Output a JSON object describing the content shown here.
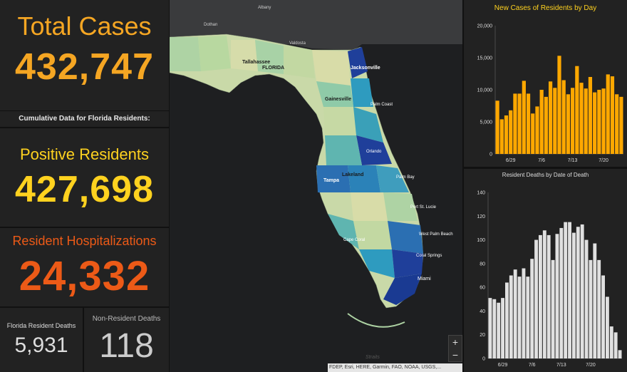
{
  "left_panel": {
    "total_label": "Total Cases",
    "total_value": "432,747",
    "cumulative_label": "Cumulative Data for Florida Residents:",
    "positive_label": "Positive Residents",
    "positive_value": "427,698",
    "hosp_label": "Resident Hospitalizations",
    "hosp_value": "24,332",
    "resident_deaths_label": "Florida Resident Deaths",
    "resident_deaths_value": "5,931",
    "nonresident_deaths_label": "Non-Resident Deaths",
    "nonresident_deaths_value": "118"
  },
  "map": {
    "labels_top": [
      "Albany",
      "Dothan",
      "Valdosta"
    ],
    "labels": [
      "Tallahassee",
      "FLORIDA",
      "Jacksonville",
      "Gainesville",
      "Palm Coast",
      "Orlando",
      "Lakeland",
      "Tampa",
      "Palm Bay",
      "Port St. Lucie",
      "West Palm Beach",
      "Cape Coral",
      "Coral Springs",
      "Miami"
    ],
    "strait_label": "Straits",
    "attribution": "FDEP, Esri, HERE, Garmin, FAO, NOAA, USGS,...",
    "zoom_in": "+",
    "zoom_out": "−",
    "colors": {
      "low": "#d8dca8",
      "mid": "#9fcfa8",
      "high": "#2e9bbf",
      "max": "#1f3f9a"
    }
  },
  "chart_data": [
    {
      "type": "bar",
      "title": "New Cases of Residents by Day",
      "color": "#ffa800",
      "ylim": [
        0,
        20000
      ],
      "yticks": [
        0,
        5000,
        10000,
        15000,
        20000
      ],
      "ytick_labels": [
        "0",
        "5,000",
        "10,000",
        "15,000",
        "20,000"
      ],
      "xtick_labels": [
        "6/29",
        "7/6",
        "7/13",
        "7/20"
      ],
      "xtick_index": [
        3,
        10,
        17,
        24
      ],
      "values": [
        8300,
        5400,
        6000,
        6800,
        9400,
        9400,
        11400,
        9400,
        6300,
        7400,
        10000,
        8900,
        11300,
        10300,
        15300,
        11500,
        9300,
        10300,
        13700,
        11100,
        10200,
        12000,
        9600,
        10000,
        10200,
        12400,
        12100,
        9300,
        8900
      ]
    },
    {
      "type": "bar",
      "title": "Resident Deaths by Date of Death",
      "color": "#e0e0e0",
      "ylim": [
        0,
        140
      ],
      "yticks": [
        0,
        20,
        40,
        60,
        80,
        100,
        120,
        140
      ],
      "ytick_labels": [
        "0",
        "20",
        "40",
        "60",
        "80",
        "100",
        "120",
        "140"
      ],
      "xtick_labels": [
        "6/29",
        "7/6",
        "7/13",
        "7/20"
      ],
      "xtick_index": [
        3,
        10,
        17,
        24
      ],
      "values": [
        51,
        50,
        47,
        51,
        64,
        70,
        75,
        69,
        76,
        69,
        84,
        100,
        104,
        108,
        104,
        83,
        105,
        110,
        115,
        115,
        106,
        111,
        113,
        100,
        83,
        97,
        83,
        70,
        52,
        27,
        22,
        7
      ]
    }
  ]
}
